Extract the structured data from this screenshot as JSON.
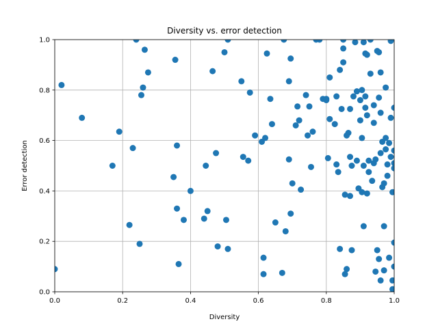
{
  "chart_data": {
    "type": "scatter",
    "title": "Diversity vs. error detection",
    "xlabel": "Diversity",
    "ylabel": "Error detection",
    "xlim": [
      0,
      1
    ],
    "ylim": [
      0,
      1
    ],
    "xticks": [
      "0.0",
      "0.2",
      "0.4",
      "0.6",
      "0.8",
      "1.0"
    ],
    "yticks": [
      "0.0",
      "0.2",
      "0.4",
      "0.6",
      "0.8",
      "1.0"
    ],
    "grid": true,
    "marker_color": "#1f77b4",
    "series": [
      {
        "x": [
          0.0,
          0.02,
          0.08,
          0.17,
          0.19,
          0.22,
          0.23,
          0.24,
          0.25,
          0.255,
          0.26,
          0.265,
          0.275,
          0.35,
          0.355,
          0.36,
          0.36,
          0.365,
          0.38,
          0.4,
          0.44,
          0.445,
          0.45,
          0.465,
          0.475,
          0.48,
          0.5,
          0.505,
          0.51,
          0.51,
          0.55,
          0.555,
          0.57,
          0.575,
          0.59,
          0.61,
          0.615,
          0.615,
          0.62,
          0.625,
          0.635,
          0.64,
          0.65,
          0.67,
          0.675,
          0.68,
          0.69,
          0.69,
          0.695,
          0.695,
          0.7,
          0.71,
          0.715,
          0.72,
          0.725,
          0.74,
          0.745,
          0.75,
          0.755,
          0.76,
          0.77,
          0.79,
          0.8,
          0.805,
          0.81,
          0.81,
          0.825,
          0.83,
          0.83,
          0.835,
          0.84,
          0.845,
          0.85,
          0.85,
          0.85,
          0.855,
          0.855,
          0.86,
          0.865,
          0.87,
          0.87,
          0.87,
          0.875,
          0.875,
          0.88,
          0.89,
          0.895,
          0.9,
          0.9,
          0.905,
          0.905,
          0.905,
          0.91,
          0.91,
          0.91,
          0.915,
          0.915,
          0.92,
          0.92,
          0.92,
          0.925,
          0.925,
          0.93,
          0.935,
          0.94,
          0.94,
          0.945,
          0.945,
          0.95,
          0.95,
          0.955,
          0.955,
          0.955,
          0.96,
          0.96,
          0.96,
          0.965,
          0.965,
          0.97,
          0.97,
          0.975,
          0.975,
          0.975,
          0.98,
          0.98,
          0.985,
          0.985,
          0.99,
          0.99,
          0.99,
          0.995,
          0.995,
          1.0,
          1.0,
          1.0,
          1.0,
          1.0,
          1.0,
          0.93,
          0.89,
          0.84,
          0.8,
          0.78,
          0.96,
          0.97,
          0.86,
          0.885,
          0.915,
          0.94,
          0.995
        ],
        "y": [
          0.09,
          0.82,
          0.69,
          0.5,
          0.635,
          0.265,
          0.57,
          1.0,
          0.19,
          0.78,
          0.81,
          0.96,
          0.87,
          0.455,
          0.92,
          0.33,
          0.58,
          0.11,
          0.285,
          0.4,
          0.29,
          0.5,
          0.32,
          0.875,
          0.55,
          0.18,
          0.95,
          0.285,
          0.17,
          1.0,
          0.835,
          0.535,
          0.52,
          0.79,
          0.62,
          0.595,
          0.07,
          0.135,
          0.61,
          0.945,
          0.765,
          0.665,
          0.275,
          0.075,
          1.0,
          0.24,
          0.525,
          0.835,
          0.925,
          0.31,
          0.43,
          0.66,
          0.735,
          0.68,
          0.405,
          0.78,
          0.62,
          0.735,
          0.495,
          0.635,
          1.0,
          0.765,
          0.765,
          0.53,
          0.685,
          0.85,
          0.665,
          0.775,
          0.505,
          0.475,
          0.88,
          0.725,
          0.91,
          0.965,
          1.0,
          0.07,
          0.385,
          0.09,
          0.63,
          0.725,
          0.535,
          0.38,
          0.5,
          0.165,
          0.775,
          0.795,
          0.41,
          0.68,
          0.76,
          0.395,
          0.61,
          0.8,
          0.26,
          0.5,
          0.99,
          0.73,
          0.945,
          0.39,
          0.7,
          0.94,
          0.475,
          0.52,
          0.865,
          0.44,
          0.51,
          0.67,
          0.08,
          0.525,
          0.955,
          0.165,
          0.13,
          0.95,
          0.77,
          0.55,
          0.045,
          0.87,
          0.595,
          0.415,
          0.43,
          0.26,
          0.565,
          0.61,
          0.81,
          0.505,
          0.46,
          0.135,
          0.59,
          0.995,
          0.535,
          0.69,
          0.045,
          0.01,
          0.73,
          0.51,
          0.49,
          0.195,
          0.1,
          0.56,
          1.0,
          0.52,
          0.17,
          0.76,
          1.0,
          0.71,
          0.085,
          0.62,
          0.99,
          0.775,
          0.74,
          0.395
        ]
      }
    ]
  }
}
